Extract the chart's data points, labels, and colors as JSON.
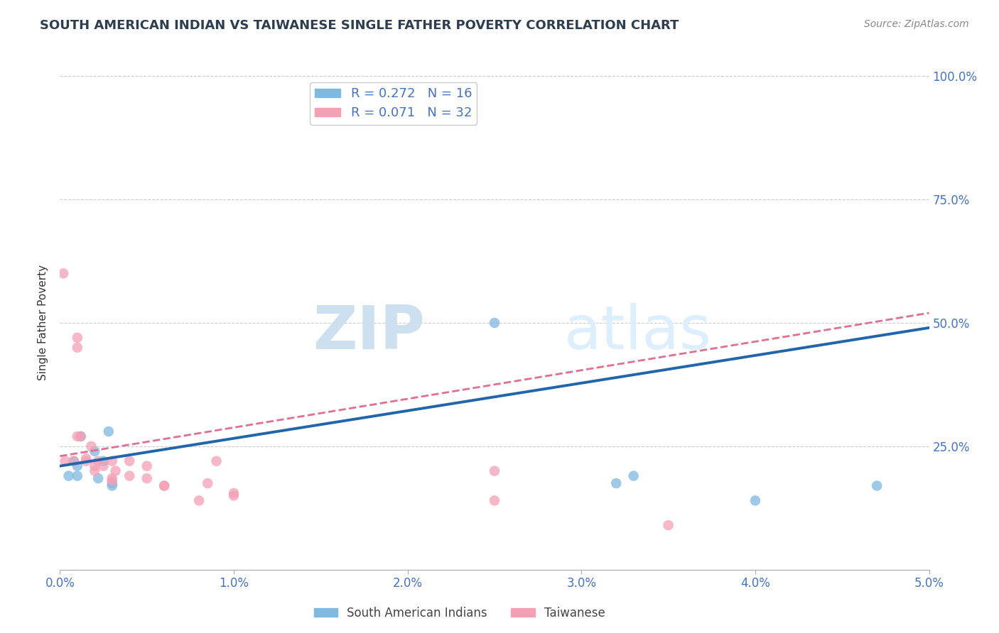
{
  "title": "SOUTH AMERICAN INDIAN VS TAIWANESE SINGLE FATHER POVERTY CORRELATION CHART",
  "source": "Source: ZipAtlas.com",
  "ylabel": "Single Father Poverty",
  "xlim": [
    0.0,
    0.05
  ],
  "ylim": [
    0.0,
    1.0
  ],
  "xticks": [
    0.0,
    0.01,
    0.02,
    0.03,
    0.04,
    0.05
  ],
  "yticks": [
    0.0,
    0.25,
    0.5,
    0.75,
    1.0
  ],
  "ytick_labels": [
    "",
    "25.0%",
    "50.0%",
    "75.0%",
    "100.0%"
  ],
  "xtick_labels": [
    "0.0%",
    "1.0%",
    "2.0%",
    "3.0%",
    "4.0%",
    "5.0%"
  ],
  "blue_R": 0.272,
  "blue_N": 16,
  "pink_R": 0.071,
  "pink_N": 32,
  "blue_color": "#7fb9e0",
  "pink_color": "#f4a0b5",
  "blue_line_color": "#2166ac",
  "pink_line_color": "#e07090",
  "legend_label_blue": "South American Indians",
  "legend_label_pink": "Taiwanese",
  "blue_scatter_x": [
    0.0005,
    0.0008,
    0.001,
    0.001,
    0.0012,
    0.002,
    0.0022,
    0.0025,
    0.0028,
    0.003,
    0.003,
    0.025,
    0.032,
    0.033,
    0.04,
    0.047
  ],
  "blue_scatter_y": [
    0.19,
    0.22,
    0.19,
    0.21,
    0.27,
    0.24,
    0.185,
    0.22,
    0.28,
    0.175,
    0.17,
    0.5,
    0.175,
    0.19,
    0.14,
    0.17
  ],
  "pink_scatter_x": [
    0.0002,
    0.0003,
    0.0008,
    0.001,
    0.001,
    0.001,
    0.0012,
    0.0015,
    0.0015,
    0.0018,
    0.002,
    0.002,
    0.0022,
    0.0025,
    0.003,
    0.003,
    0.003,
    0.0032,
    0.004,
    0.004,
    0.005,
    0.005,
    0.006,
    0.006,
    0.008,
    0.0085,
    0.009,
    0.01,
    0.01,
    0.025,
    0.025,
    0.035
  ],
  "pink_scatter_y": [
    0.6,
    0.22,
    0.22,
    0.45,
    0.47,
    0.27,
    0.27,
    0.22,
    0.225,
    0.25,
    0.21,
    0.2,
    0.22,
    0.21,
    0.185,
    0.18,
    0.22,
    0.2,
    0.19,
    0.22,
    0.21,
    0.185,
    0.17,
    0.17,
    0.14,
    0.175,
    0.22,
    0.155,
    0.15,
    0.2,
    0.14,
    0.09
  ],
  "blue_trend_x": [
    0.0,
    0.05
  ],
  "blue_trend_y": [
    0.21,
    0.49
  ],
  "pink_trend_x": [
    0.0,
    0.05
  ],
  "pink_trend_y": [
    0.23,
    0.52
  ],
  "watermark_zip": "ZIP",
  "watermark_atlas": "atlas",
  "background_color": "#ffffff",
  "grid_color": "#cccccc",
  "title_color": "#2c3e50",
  "tick_color": "#4472c4",
  "marker_size": 110
}
